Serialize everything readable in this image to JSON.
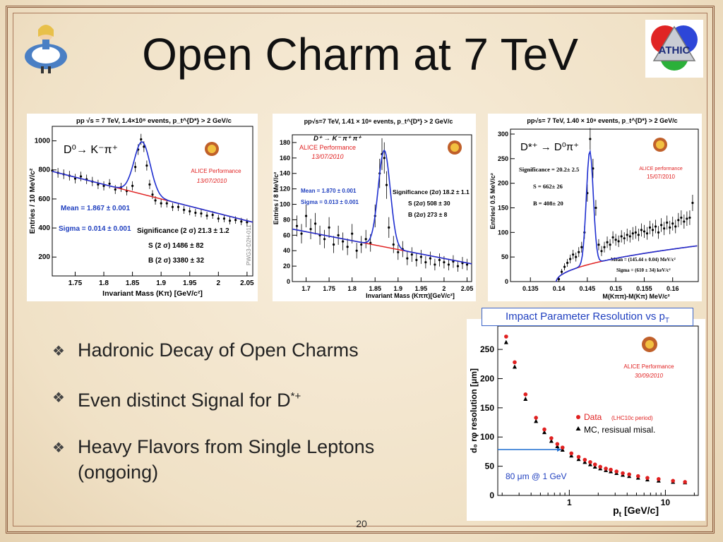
{
  "slide": {
    "title": "Open Charm at 7 TeV",
    "page_number": "20",
    "bullets": [
      "Hadronic Decay of Open Charms",
      "Even distinct Signal for D",
      "Heavy Flavors from Single Leptons (ongoing)"
    ],
    "bullet_sup": "*+",
    "logos": {
      "left": "alice-cartoon-logo",
      "right_text": "ATHIC"
    }
  },
  "chart_data": [
    {
      "type": "scatter",
      "header": "pp √s = 7 TeV, 1.4×10⁸ events, p_t^{D*} > 2 GeV/c",
      "decay": "D⁰→ K⁻π⁺",
      "performance": "ALICE Performance",
      "date": "13/07/2010",
      "stats": [
        "Mean = 1.867 ± 0.001",
        "Sigma = 0.014 ± 0.001",
        "Significance (2 σ) 21.3 ± 1.2",
        "S (2 σ) 1486 ± 82",
        "B (2 σ) 3380 ± 32"
      ],
      "side_label": "PWG3-D2H-011",
      "xlabel": "Invariant Mass (Kπ) [GeV/c²]",
      "ylabel": "Entries / 10 MeV/c²",
      "xlim": [
        1.71,
        2.06
      ],
      "ylim": [
        70,
        1100
      ],
      "xticks": [
        1.75,
        1.8,
        1.85,
        1.9,
        1.95,
        2,
        2.05
      ],
      "yticks": [
        200,
        400,
        600,
        800,
        1000
      ],
      "series": [
        {
          "x": [
            1.71,
            1.72,
            1.73,
            1.74,
            1.75,
            1.76,
            1.77,
            1.78,
            1.79,
            1.8,
            1.81,
            1.82,
            1.83,
            1.84,
            1.85,
            1.855,
            1.86,
            1.865,
            1.87,
            1.875,
            1.88,
            1.885,
            1.89,
            1.9,
            1.91,
            1.92,
            1.93,
            1.94,
            1.95,
            1.96,
            1.97,
            1.98,
            1.99,
            2.0,
            2.01,
            2.02,
            2.03,
            2.04,
            2.05
          ],
          "y": [
            795,
            780,
            770,
            760,
            740,
            755,
            735,
            720,
            700,
            690,
            705,
            665,
            680,
            655,
            690,
            820,
            940,
            1010,
            960,
            830,
            700,
            630,
            590,
            570,
            570,
            545,
            545,
            525,
            515,
            505,
            500,
            485,
            490,
            465,
            465,
            450,
            455,
            445,
            440
          ]
        }
      ],
      "background": {
        "x": [
          1.71,
          2.06
        ],
        "y": [
          790,
          440
        ]
      }
    },
    {
      "type": "scatter",
      "header": "pp√s=7 TeV, 1.41 × 10⁸ events, p_t^{D*} > 2 GeV/c",
      "decay": "D⁺ → K⁻ π⁺ π⁺",
      "performance": "ALICE Performance",
      "date": "13/07/2010",
      "stats": [
        "Mean = 1.870 ± 0.001",
        "Sigma = 0.013 ± 0.001",
        "Significance (2σ) 18.2 ± 1.1",
        "S (2σ) 508 ± 30",
        "B (2σ) 273 ± 8"
      ],
      "xlabel": "Invariant Mass (Kππ)[GeV/c²]",
      "ylabel": "Entries / 8 MeV/c²",
      "xlim": [
        1.67,
        2.06
      ],
      "ylim": [
        0,
        190
      ],
      "xticks": [
        1.7,
        1.75,
        1.8,
        1.85,
        1.9,
        1.95,
        2,
        2.05
      ],
      "yticks": [
        0,
        20,
        40,
        60,
        80,
        100,
        120,
        140,
        160,
        180
      ],
      "series": [
        {
          "x": [
            1.68,
            1.69,
            1.7,
            1.71,
            1.72,
            1.73,
            1.74,
            1.75,
            1.76,
            1.77,
            1.78,
            1.79,
            1.8,
            1.81,
            1.82,
            1.83,
            1.84,
            1.85,
            1.86,
            1.865,
            1.87,
            1.875,
            1.88,
            1.89,
            1.9,
            1.91,
            1.92,
            1.93,
            1.94,
            1.95,
            1.96,
            1.97,
            1.98,
            1.99,
            2.0,
            2.01,
            2.02,
            2.03,
            2.04,
            2.05
          ],
          "y": [
            72,
            62,
            85,
            68,
            75,
            60,
            55,
            70,
            48,
            60,
            52,
            45,
            62,
            40,
            48,
            55,
            50,
            85,
            140,
            165,
            160,
            125,
            70,
            48,
            38,
            42,
            30,
            35,
            28,
            32,
            25,
            30,
            22,
            28,
            25,
            22,
            26,
            20,
            24,
            22
          ]
        }
      ],
      "background": {
        "x": [
          1.67,
          2.06
        ],
        "y": [
          68,
          23
        ]
      }
    },
    {
      "type": "scatter",
      "header": "pp√s= 7 TeV, 1.40 × 10⁸ events, p_t^{D*} > 2 GeV/c",
      "decay": "D*⁺ → D⁰π⁺",
      "performance": "ALICE performance",
      "date": "15/07/2010",
      "stats": [
        "Significance = 20.2± 2.5",
        "S = 662± 26",
        "B = 408± 20",
        "Mean = (145.44 ± 0.04) MeV/c²",
        "Sigma = (610 ± 34) keV/c²"
      ],
      "xlabel": "M(Kππ)-M(Kπ) MeV/c²",
      "ylabel": "Entries/ 0.5 MeV/c²",
      "xlim": [
        0.1315,
        0.1645
      ],
      "ylim": [
        0,
        310
      ],
      "xticks": [
        0.135,
        0.14,
        0.145,
        0.15,
        0.155,
        0.16
      ],
      "xticklabels": [
        "0.135",
        "0.14",
        "0.145",
        "0.15",
        "0.155",
        "0.16"
      ],
      "yticks": [
        0,
        50,
        100,
        150,
        200,
        250,
        300
      ],
      "series": [
        {
          "x": [
            0.14,
            0.1405,
            0.141,
            0.1415,
            0.142,
            0.1425,
            0.143,
            0.1435,
            0.144,
            0.1445,
            0.145,
            0.1455,
            0.146,
            0.1465,
            0.147,
            0.1475,
            0.148,
            0.1485,
            0.149,
            0.1495,
            0.15,
            0.1505,
            0.151,
            0.1515,
            0.152,
            0.1525,
            0.153,
            0.1535,
            0.154,
            0.1545,
            0.155,
            0.1555,
            0.156,
            0.1565,
            0.157,
            0.1575,
            0.158,
            0.1585,
            0.159,
            0.1595,
            0.16,
            0.1605,
            0.161,
            0.1615,
            0.162,
            0.1625,
            0.163,
            0.1635
          ],
          "y": [
            5,
            20,
            30,
            38,
            46,
            55,
            50,
            60,
            70,
            100,
            180,
            290,
            230,
            150,
            75,
            62,
            70,
            80,
            75,
            90,
            85,
            82,
            92,
            88,
            95,
            92,
            98,
            100,
            95,
            105,
            102,
            98,
            110,
            105,
            112,
            100,
            115,
            108,
            120,
            110,
            118,
            112,
            125,
            130,
            122,
            128,
            130,
            160
          ]
        }
      ],
      "background": {
        "x0": 0.1395,
        "x1": 0.1645
      }
    },
    {
      "type": "scatter",
      "title_label": "Impact Parameter Resolution vs p",
      "title_sub": "T",
      "performance": "ALICE Performance",
      "date": "30/09/2010",
      "annotation": "80 μm @ 1 GeV",
      "xlabel": "p",
      "xlabel_sub": "t",
      "xlabel_unit": "[GeV/c]",
      "ylabel": "d₀ rφ resolution [μm]",
      "xscale": "log",
      "xlim": [
        0.18,
        22
      ],
      "ylim": [
        0,
        290
      ],
      "xticks": [
        1,
        10
      ],
      "yticks": [
        0,
        50,
        100,
        150,
        200,
        250
      ],
      "legend": [
        {
          "label": "Data",
          "detail": "(LHC10c period)",
          "color": "#e02020",
          "marker": "circle"
        },
        {
          "label": "MC, resisual misal.",
          "detail": "",
          "color": "#000000",
          "marker": "triangle"
        }
      ],
      "series": [
        {
          "name": "Data",
          "x": [
            0.22,
            0.27,
            0.35,
            0.45,
            0.55,
            0.65,
            0.75,
            0.85,
            1.05,
            1.25,
            1.45,
            1.65,
            1.85,
            2.1,
            2.4,
            2.7,
            3.1,
            3.6,
            4.2,
            5.2,
            6.5,
            8.5,
            12,
            16
          ],
          "y": [
            272,
            228,
            173,
            133,
            113,
            98,
            88,
            82,
            72,
            66,
            61,
            57,
            53,
            49,
            46,
            44,
            41,
            38,
            36,
            33,
            30,
            28,
            25,
            23
          ]
        },
        {
          "name": "MC, resisual misal.",
          "x": [
            0.22,
            0.27,
            0.35,
            0.45,
            0.55,
            0.65,
            0.75,
            0.85,
            1.05,
            1.25,
            1.45,
            1.65,
            1.85,
            2.1,
            2.4,
            2.7,
            3.1,
            3.6,
            4.2,
            5.2,
            6.5,
            8.5,
            12,
            16
          ],
          "y": [
            262,
            220,
            165,
            127,
            108,
            93,
            84,
            78,
            68,
            62,
            57,
            53,
            49,
            46,
            43,
            41,
            38,
            35,
            33,
            30,
            27,
            25,
            23,
            22
          ]
        }
      ]
    }
  ],
  "colors": {
    "fit_signal": "#1f2fd0",
    "fit_background": "#e02020",
    "frame": "#8b5a3c",
    "points": "#000000"
  }
}
